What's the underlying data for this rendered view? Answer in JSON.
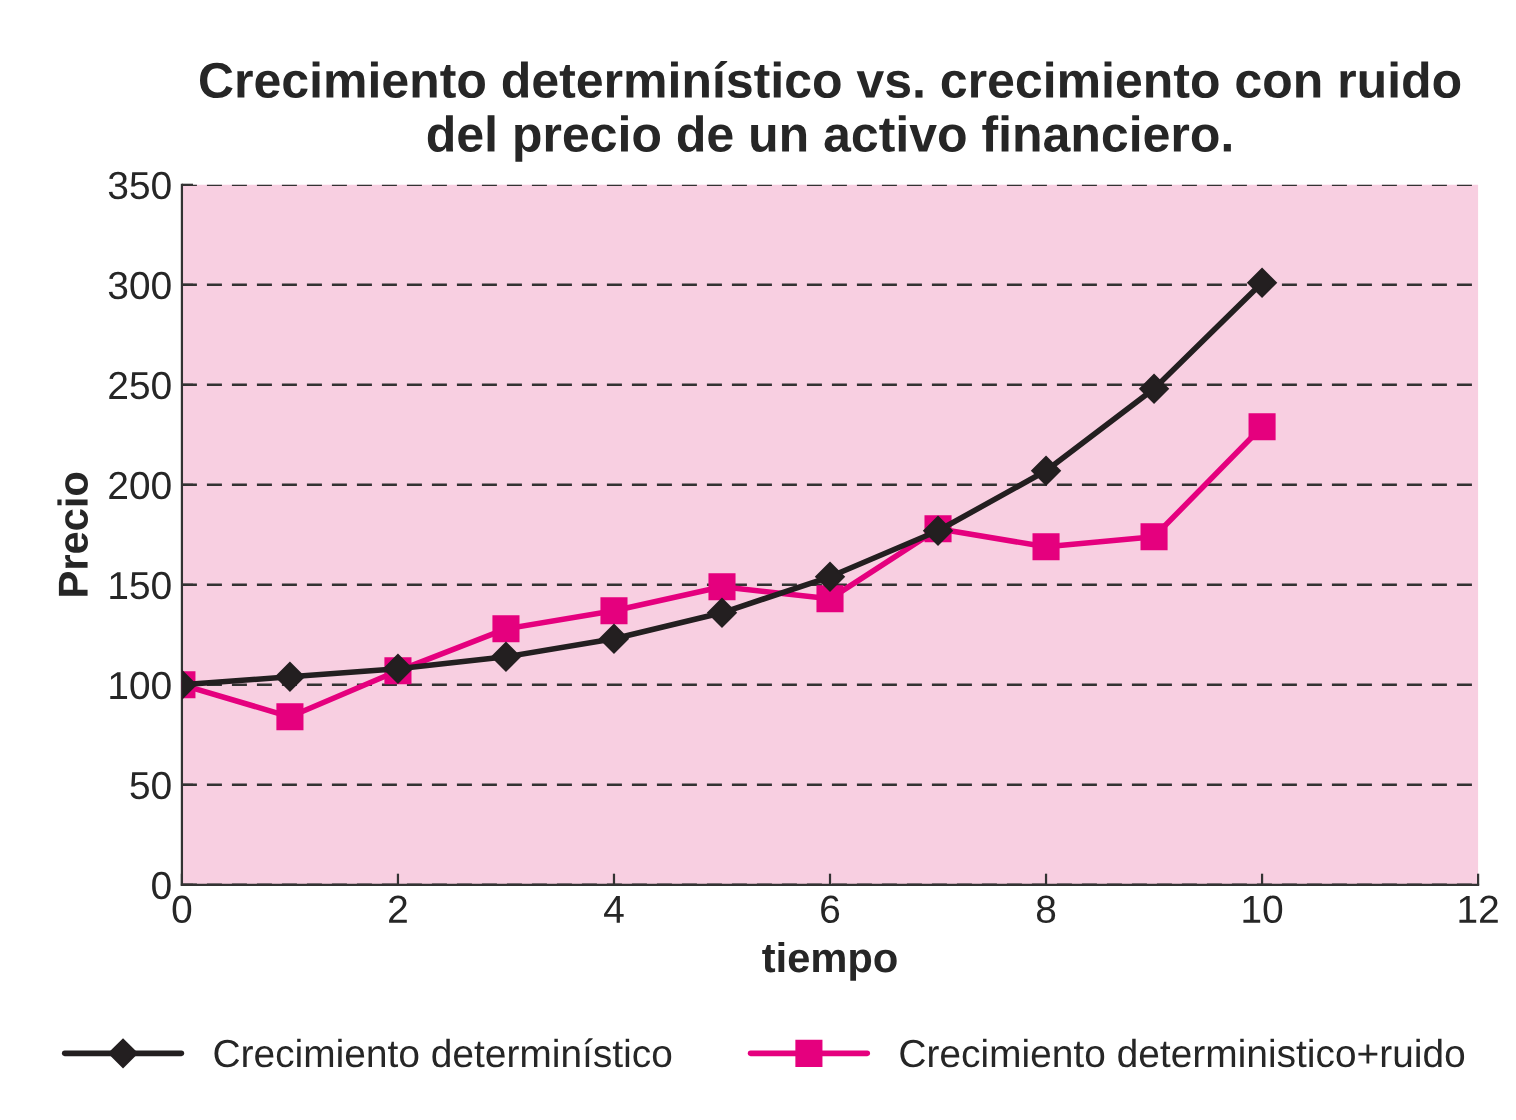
{
  "chart_data": {
    "type": "line",
    "title": "Crecimiento determinístico vs. crecimiento con ruido\ndel precio de un activo financiero.",
    "xlabel": "tiempo",
    "ylabel": "Precio",
    "x": [
      0,
      1,
      2,
      3,
      4,
      5,
      6,
      7,
      8,
      9,
      10
    ],
    "series": [
      {
        "name": "Crecimiento determinístico",
        "color": "#231f20",
        "marker": "diamond",
        "values": [
          100,
          104,
          108,
          114,
          123,
          136,
          154,
          177,
          207,
          248,
          301
        ]
      },
      {
        "name": "Crecimiento deterministico+ruido",
        "color": "#e5007e",
        "marker": "square",
        "values": [
          100,
          84,
          107,
          128,
          137,
          149,
          143,
          178,
          169,
          174,
          229
        ]
      }
    ],
    "xlim": [
      0,
      12
    ],
    "xticks": [
      0,
      2,
      4,
      6,
      8,
      10,
      12
    ],
    "ylim": [
      0,
      350
    ],
    "yticks": [
      0,
      50,
      100,
      150,
      200,
      250,
      300,
      350
    ],
    "grid": "y",
    "legend": "bottom",
    "line_style": "solid"
  }
}
